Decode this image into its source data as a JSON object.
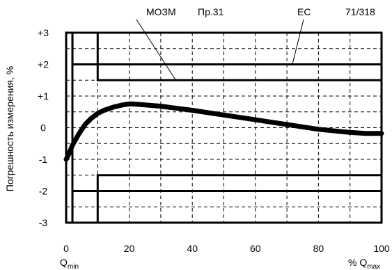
{
  "chart_data": {
    "type": "line",
    "xlim": [
      0,
      100
    ],
    "ylim": [
      -3,
      3
    ],
    "grid": true,
    "ylabel": "Погрешность измерения, %",
    "x_ticks": [
      "0",
      "20",
      "40",
      "60",
      "80",
      "100"
    ],
    "x_tick_values": [
      0,
      20,
      40,
      60,
      80,
      100
    ],
    "y_ticks": [
      "+3",
      "+2",
      "+1",
      "0",
      "-1",
      "-2",
      "-3"
    ],
    "y_tick_values": [
      3,
      2,
      1,
      0,
      -1,
      -2,
      -3
    ],
    "x_min_label": {
      "prefix": "",
      "main": "Q",
      "sub": "min"
    },
    "x_max_label": {
      "prefix": "% ",
      "main": "Q",
      "sub": "max"
    },
    "top_labels": {
      "mozm": "МОЗМ",
      "pr": "Пр.31",
      "ec": "ЕС",
      "ref": "71/318"
    },
    "error_curve": {
      "x": [
        0,
        1,
        2,
        4,
        6,
        8,
        10,
        12,
        15,
        18,
        20,
        21,
        25,
        30,
        40,
        50,
        60,
        70,
        80,
        90,
        95,
        100
      ],
      "y": [
        -1.0,
        -0.8,
        -0.55,
        -0.2,
        0.1,
        0.3,
        0.45,
        0.55,
        0.65,
        0.72,
        0.75,
        0.75,
        0.72,
        0.68,
        0.55,
        0.4,
        0.25,
        0.1,
        -0.05,
        -0.15,
        -0.18,
        -0.18
      ]
    },
    "limit_envelopes": [
      {
        "name": "МОЗМ",
        "upper": {
          "x": [
            2,
            2,
            100
          ],
          "y": [
            3,
            2,
            2
          ]
        },
        "lower": {
          "x": [
            2,
            2,
            100
          ],
          "y": [
            -3,
            -2,
            -2
          ]
        }
      },
      {
        "name": "ЕС",
        "upper": {
          "x": [
            10,
            10,
            100
          ],
          "y": [
            3,
            1.5,
            1.5
          ]
        },
        "lower": {
          "x": [
            10,
            10,
            100
          ],
          "y": [
            -3,
            -1.5,
            -1.5
          ]
        }
      }
    ],
    "qmin_marker": {
      "x": [
        0,
        0
      ],
      "y": [
        -3,
        3
      ]
    }
  }
}
